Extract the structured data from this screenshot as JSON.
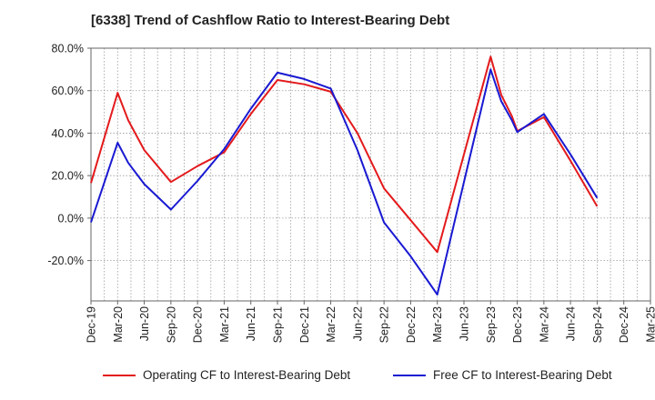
{
  "title": "[6338]  Trend of Cashflow Ratio to Interest-Bearing Debt",
  "chart_data": {
    "type": "line",
    "title": "[6338]  Trend of Cashflow Ratio to Interest-Bearing Debt",
    "xlabel": "",
    "ylabel": "",
    "categories": [
      "Dec-19",
      "Mar-20",
      "Jun-20",
      "Sep-20",
      "Dec-20",
      "Mar-21",
      "Jun-21",
      "Sep-21",
      "Dec-21",
      "Mar-22",
      "Jun-22",
      "Sep-22",
      "Dec-22",
      "Mar-23",
      "Jun-23",
      "Sep-23",
      "Dec-23",
      "Mar-24",
      "Jun-24",
      "Sep-24",
      "Dec-24",
      "Mar-25"
    ],
    "y_ticks": [
      "80.0%",
      "60.0%",
      "40.0%",
      "20.0%",
      "0.0%",
      "-20.0%"
    ],
    "ylim": [
      -39,
      80
    ],
    "grid": true,
    "legend_position": "bottom",
    "series": [
      {
        "name": "Operating CF to Interest-Bearing Debt",
        "color": "#e31a1c",
        "points": [
          {
            "t": 0,
            "v": 16.5
          },
          {
            "t": 1,
            "v": 59.0
          },
          {
            "t": 1.4,
            "v": 46.0
          },
          {
            "t": 2,
            "v": 32.0
          },
          {
            "t": 3,
            "v": 17.0
          },
          {
            "t": 4,
            "v": 24.5
          },
          {
            "t": 5,
            "v": 31.0
          },
          {
            "t": 6,
            "v": 49.0
          },
          {
            "t": 7,
            "v": 65.0
          },
          {
            "t": 8,
            "v": 63.0
          },
          {
            "t": 9,
            "v": 59.5
          },
          {
            "t": 10,
            "v": 40.0
          },
          {
            "t": 11,
            "v": 14.0
          },
          {
            "t": 12,
            "v": -1.0
          },
          {
            "t": 13,
            "v": -16.0
          },
          {
            "t": 15,
            "v": 76.0
          },
          {
            "t": 15.4,
            "v": 58.0
          },
          {
            "t": 15.8,
            "v": 48.0
          },
          {
            "t": 16,
            "v": 41.0
          },
          {
            "t": 17,
            "v": 47.5
          },
          {
            "t": 18,
            "v": 27.0
          },
          {
            "t": 19,
            "v": 5.5
          }
        ]
      },
      {
        "name": "Free CF to Interest-Bearing Debt",
        "color": "#1919d2",
        "points": [
          {
            "t": 0,
            "v": -2.0
          },
          {
            "t": 1,
            "v": 35.5
          },
          {
            "t": 1.4,
            "v": 26.0
          },
          {
            "t": 2,
            "v": 16.0
          },
          {
            "t": 3,
            "v": 4.0
          },
          {
            "t": 4,
            "v": 17.5
          },
          {
            "t": 5,
            "v": 32.5
          },
          {
            "t": 6,
            "v": 51.5
          },
          {
            "t": 7,
            "v": 68.5
          },
          {
            "t": 8,
            "v": 65.5
          },
          {
            "t": 9,
            "v": 61.0
          },
          {
            "t": 10,
            "v": 32.0
          },
          {
            "t": 11,
            "v": -2.0
          },
          {
            "t": 12,
            "v": -18.0
          },
          {
            "t": 13,
            "v": -36.0
          },
          {
            "t": 15,
            "v": 70.0
          },
          {
            "t": 15.4,
            "v": 55.0
          },
          {
            "t": 15.8,
            "v": 46.0
          },
          {
            "t": 16,
            "v": 40.5
          },
          {
            "t": 17,
            "v": 49.0
          },
          {
            "t": 18,
            "v": 30.0
          },
          {
            "t": 19,
            "v": 9.5
          }
        ]
      }
    ]
  }
}
